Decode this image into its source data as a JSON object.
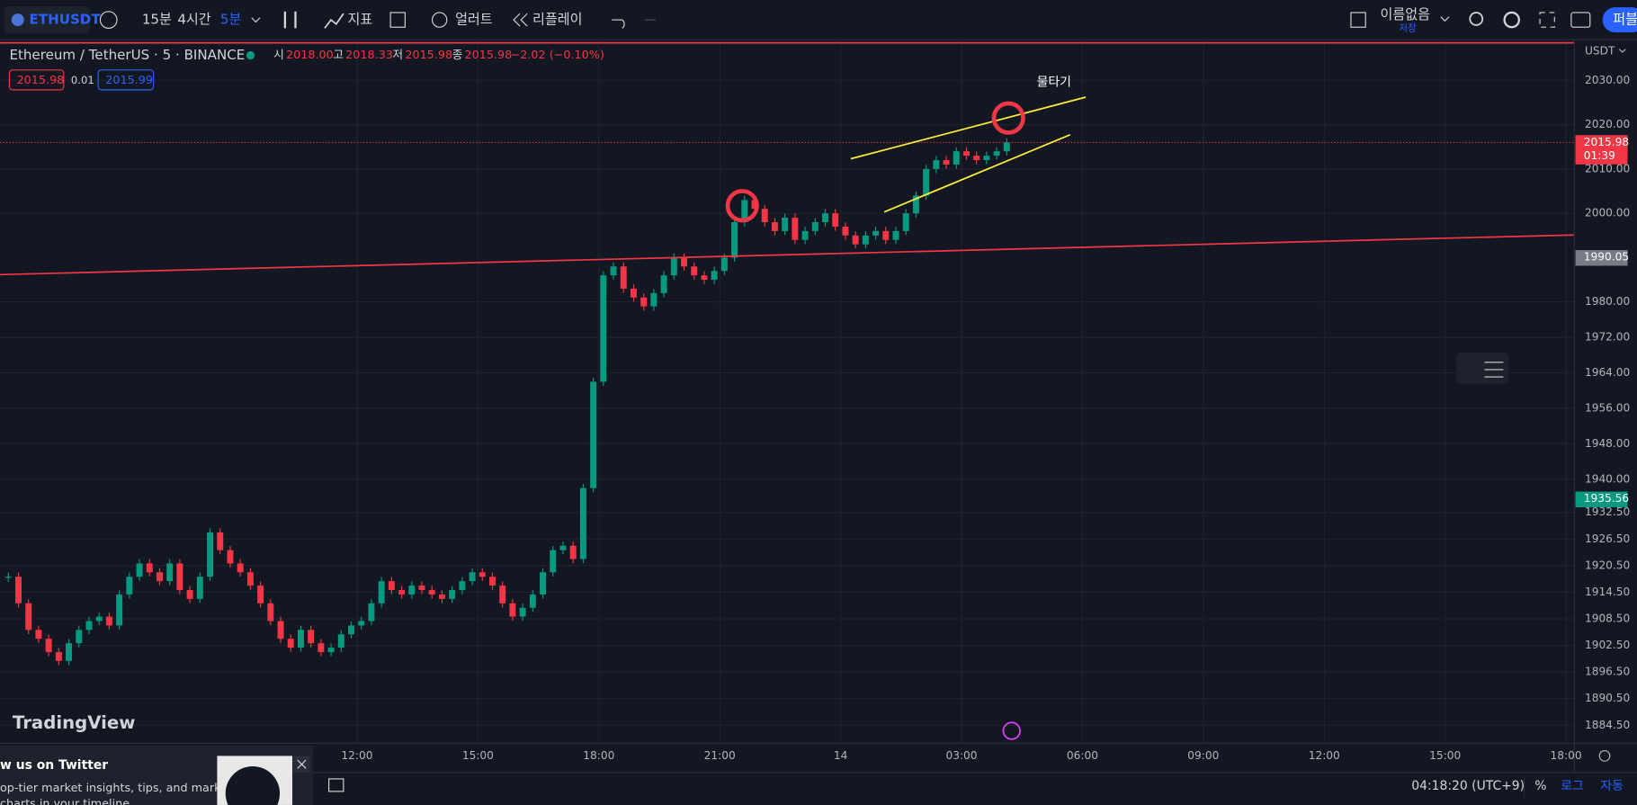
{
  "toolbar": {
    "symbol": "ETHUSDT",
    "intervals": [
      "15분",
      "4시간",
      "5분"
    ],
    "indicators": "지표",
    "alert": "얼러트",
    "replay": "리플레이",
    "layout_name": "이름없음",
    "save": "저장",
    "publish": "퍼블"
  },
  "legend": {
    "title": "Ethereum / TetherUS · 5 · BINANCE",
    "open_label": "시",
    "open": "2018.00",
    "high_label": "고",
    "high": "2018.33",
    "low_label": "저",
    "low": "2015.98",
    "close_label": "종",
    "close": "2015.98",
    "change": "−2.02 (−0.10%)",
    "bid": "2015.98",
    "spread": "0.01",
    "ask": "2015.99"
  },
  "chart_data": {
    "type": "candlestick",
    "currency": "USDT",
    "up_color": "#089981",
    "down_color": "#f23645",
    "values": [
      1918,
      1912,
      1906,
      1904,
      1901,
      1899,
      1903,
      1906,
      1908,
      1909,
      1907,
      1914,
      1918,
      1921,
      1919,
      1917,
      1921,
      1915,
      1913,
      1918,
      1928,
      1924,
      1921,
      1919,
      1916,
      1912,
      1908,
      1904,
      1902,
      1906,
      1903,
      1901,
      1902,
      1905,
      1907,
      1908,
      1912,
      1917,
      1915,
      1914,
      1916,
      1915,
      1914,
      1913,
      1915,
      1917,
      1919,
      1918,
      1916,
      1912,
      1909,
      1911,
      1914,
      1919,
      1924,
      1925,
      1922,
      1938,
      1962,
      1986,
      1988,
      1983,
      1981,
      1979,
      1982,
      1986,
      1990,
      1988,
      1986,
      1985,
      1987,
      1990,
      1998,
      2003,
      2001,
      1998,
      1996,
      1999,
      1994,
      1996,
      1998,
      2000,
      1997,
      1995,
      1993,
      1995,
      1996,
      1994,
      1996,
      2000,
      2004,
      2010,
      2012,
      2011,
      2014,
      2013,
      2012,
      2013,
      2014,
      2016
    ],
    "ylim": [
      1880.4,
      2038.7
    ],
    "yticks": [
      {
        "value": 2030,
        "label": "2030.00"
      },
      {
        "value": 2020,
        "label": "2020.00"
      },
      {
        "value": 2010,
        "label": "2010.00"
      },
      {
        "value": 2000,
        "label": "2000.00"
      },
      {
        "value": 1980,
        "label": "1980.00"
      },
      {
        "value": 1972,
        "label": "1972.00"
      },
      {
        "value": 1964,
        "label": "1964.00"
      },
      {
        "value": 1956,
        "label": "1956.00"
      },
      {
        "value": 1948,
        "label": "1948.00"
      },
      {
        "value": 1940,
        "label": "1940.00"
      },
      {
        "value": 1932.5,
        "label": "1932.50"
      },
      {
        "value": 1926.5,
        "label": "1926.50"
      },
      {
        "value": 1920.5,
        "label": "1920.50"
      },
      {
        "value": 1914.5,
        "label": "1914.50"
      },
      {
        "value": 1908.5,
        "label": "1908.50"
      },
      {
        "value": 1902.5,
        "label": "1902.50"
      },
      {
        "value": 1896.5,
        "label": "1896.50"
      },
      {
        "value": 1890.5,
        "label": "1890.50"
      },
      {
        "value": 1884.5,
        "label": "1884.50"
      }
    ],
    "xticks": [
      "12:00",
      "15:00",
      "18:00",
      "21:00",
      "14",
      "03:00",
      "06:00",
      "09:00",
      "12:00",
      "15:00",
      "18:00"
    ],
    "price_labels": [
      {
        "value": 2015.98,
        "label": "2015.98",
        "color": "#f23645"
      },
      {
        "value": 1990.05,
        "label": "1990.05",
        "color": "#787b86"
      },
      {
        "value": 1935.56,
        "label": "1935.56",
        "color": "#089981"
      }
    ],
    "countdown": "01:39",
    "annotation": "물타기"
  },
  "watermark": "TradingView",
  "status": {
    "clock": "04:18:20 (UTC+9)",
    "percent": "%",
    "log": "로그",
    "auto": "자동"
  },
  "popup": {
    "title": "w us on Twitter",
    "line1": "op-tier market insights, tips, and market-",
    "line2": "charts in your timeline"
  }
}
